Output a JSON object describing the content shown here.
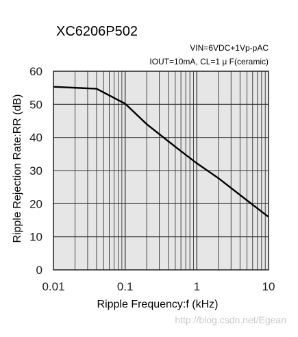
{
  "chart_data": {
    "type": "line",
    "title": "XC6206P502",
    "conditions": [
      "VIN=6VDC+1Vp-pAC",
      "IOUT=10mA, CL=1 μ F(ceramic)"
    ],
    "xlabel": "Ripple Frequency:f (kHz)",
    "ylabel": "Ripple Rejection Rate:RR (dB)",
    "xscale": "log",
    "xlim": [
      0.01,
      10
    ],
    "ylim": [
      0,
      60
    ],
    "x_ticks": [
      0.01,
      0.1,
      1,
      10
    ],
    "x_tick_labels": [
      "0.01",
      "0.1",
      "1",
      "10"
    ],
    "y_ticks": [
      0,
      10,
      20,
      30,
      40,
      50,
      60
    ],
    "y_tick_labels": [
      "0",
      "10",
      "20",
      "30",
      "40",
      "50",
      "60"
    ],
    "grid": true,
    "series": [
      {
        "x": [
          0.01,
          0.04,
          0.1,
          0.2,
          0.5,
          1,
          2,
          5,
          10
        ],
        "y": [
          55.3,
          54.7,
          50.2,
          44.0,
          37.2,
          32.2,
          27.7,
          21.0,
          16.0
        ]
      }
    ]
  },
  "style": {
    "plot_bg": "#e6e6e6",
    "grid_color": "#333333",
    "line_color": "#000000",
    "text_color": "#1a1a1a"
  },
  "watermark": "http://blog.csdn.net/Egean"
}
